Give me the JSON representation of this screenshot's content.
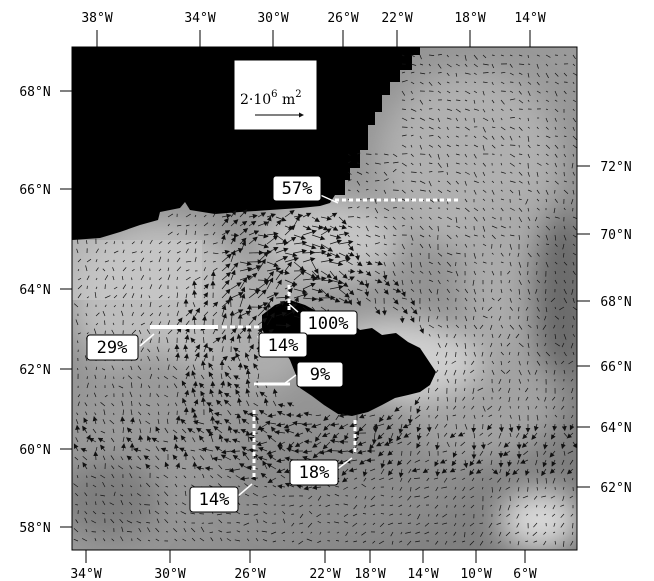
{
  "map": {
    "top_lon_labels": [
      "38°W",
      "34°W",
      "30°W",
      "26°W",
      "22°W",
      "18°W",
      "14°W"
    ],
    "bottom_lon_labels": [
      "34°W",
      "30°W",
      "26°W",
      "22°W",
      "18°W",
      "14°W",
      "10°W",
      "6°W"
    ],
    "left_lat_labels": [
      "68°N",
      "66°N",
      "64°N",
      "62°N",
      "60°N",
      "58°N"
    ],
    "right_lat_labels": [
      "72°N",
      "70°N",
      "68°N",
      "66°N",
      "64°N",
      "62°N"
    ],
    "scale": {
      "base": "2·10",
      "exp": "6",
      "unit": "m",
      "unit_exp": "2"
    },
    "sections": [
      {
        "label": "57%"
      },
      {
        "label": "100%"
      },
      {
        "label": "29%"
      },
      {
        "label": "14%"
      },
      {
        "label": "9%"
      },
      {
        "label": "18%"
      },
      {
        "label": "14%"
      }
    ],
    "colors": {
      "land": "#000000",
      "section_line": "#ffffff",
      "arrows": "#111111"
    }
  }
}
